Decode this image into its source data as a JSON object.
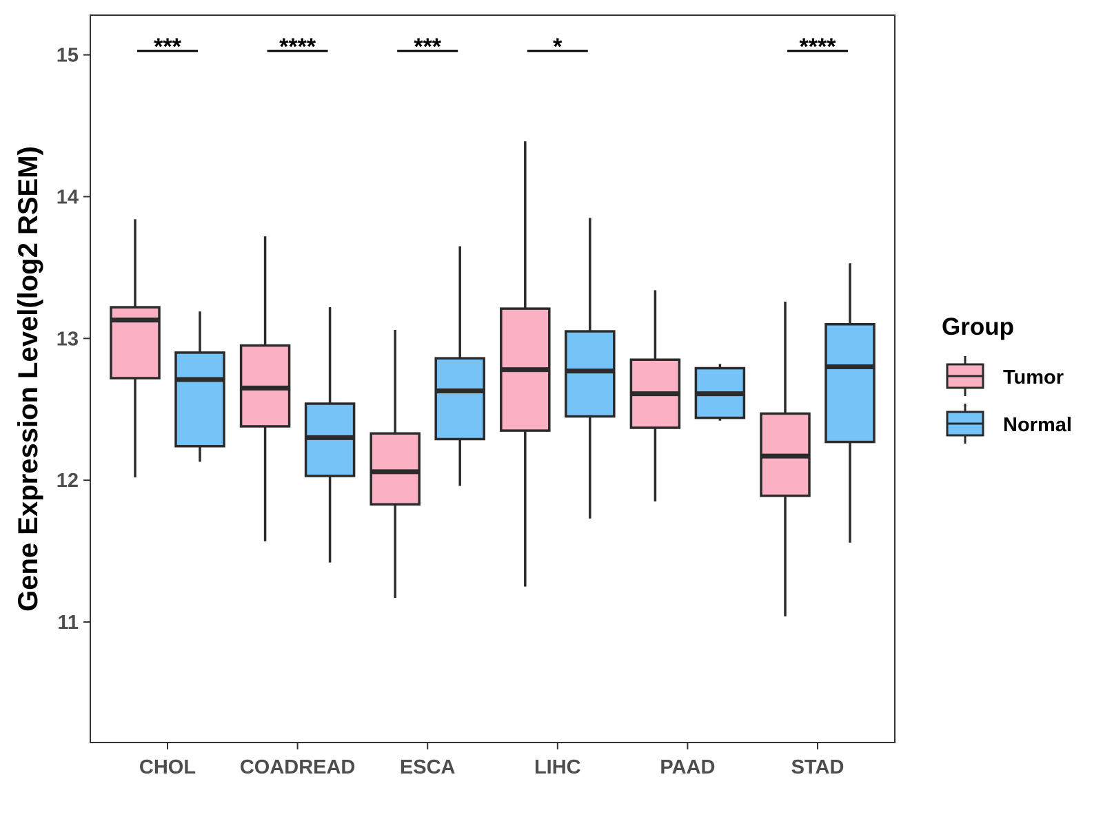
{
  "chart_data": {
    "type": "boxplot",
    "title": "",
    "xlabel": "",
    "ylabel": "Gene Expression Level(log2 RSEM)",
    "ylim": [
      10.15,
      15.28
    ],
    "yticks": [
      11,
      12,
      13,
      14,
      15
    ],
    "grid": false,
    "legend_position": "right",
    "legend": {
      "title": "Group",
      "items": [
        {
          "name": "Tumor",
          "color": "#FBB0C3"
        },
        {
          "name": "Normal",
          "color": "#76C3F8"
        }
      ]
    },
    "categories": [
      "CHOL",
      "COADREAD",
      "ESCA",
      "LIHC",
      "PAAD",
      "STAD"
    ],
    "series": [
      {
        "name": "Tumor",
        "color": "#FBB0C3",
        "boxes": [
          {
            "min": 12.02,
            "q1": 12.72,
            "median": 13.13,
            "q3": 13.22,
            "max": 13.84
          },
          {
            "min": 11.57,
            "q1": 12.38,
            "median": 12.65,
            "q3": 12.95,
            "max": 13.72
          },
          {
            "min": 11.17,
            "q1": 11.83,
            "median": 12.06,
            "q3": 12.33,
            "max": 13.06
          },
          {
            "min": 11.25,
            "q1": 12.35,
            "median": 12.78,
            "q3": 13.21,
            "max": 14.39
          },
          {
            "min": 11.85,
            "q1": 12.37,
            "median": 12.61,
            "q3": 12.85,
            "max": 13.34
          },
          {
            "min": 11.04,
            "q1": 11.89,
            "median": 12.17,
            "q3": 12.47,
            "max": 13.26
          }
        ]
      },
      {
        "name": "Normal",
        "color": "#76C3F8",
        "boxes": [
          {
            "min": 12.13,
            "q1": 12.24,
            "median": 12.71,
            "q3": 12.9,
            "max": 13.19
          },
          {
            "min": 11.42,
            "q1": 12.03,
            "median": 12.3,
            "q3": 12.54,
            "max": 13.22
          },
          {
            "min": 11.96,
            "q1": 12.29,
            "median": 12.63,
            "q3": 12.86,
            "max": 13.65
          },
          {
            "min": 11.73,
            "q1": 12.45,
            "median": 12.77,
            "q3": 13.05,
            "max": 13.85
          },
          {
            "min": 12.42,
            "q1": 12.44,
            "median": 12.61,
            "q3": 12.79,
            "max": 12.82
          },
          {
            "min": 11.56,
            "q1": 12.27,
            "median": 12.8,
            "q3": 13.1,
            "max": 13.53
          }
        ]
      }
    ],
    "significance": [
      "***",
      "****",
      "***",
      "*",
      "",
      "****"
    ]
  }
}
